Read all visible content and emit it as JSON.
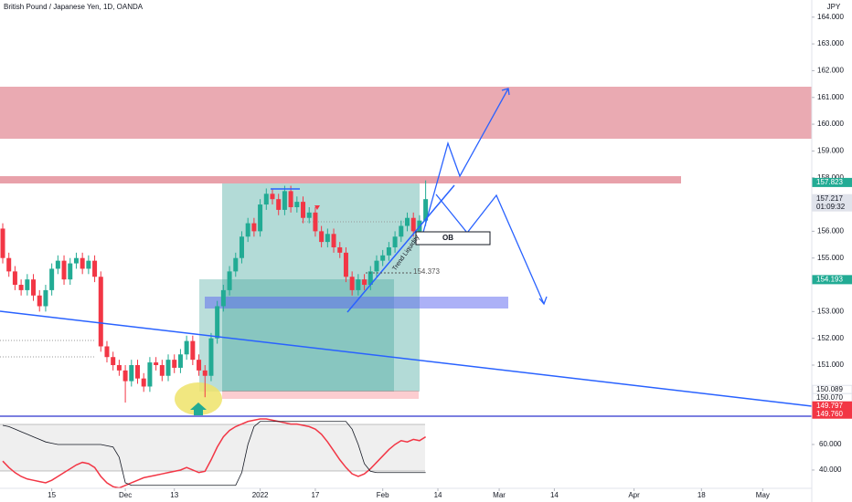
{
  "chart_data": [
    {
      "type": "candlestick",
      "title": "British Pound / Japanese Yen, 1D, OANDA",
      "axis_label": "JPY",
      "up_color": "#22ab94",
      "down_color": "#f23645",
      "xlim": [
        0,
        132
      ],
      "ylim": [
        149.125,
        164.64
      ],
      "xticks": [
        {
          "value": 8,
          "label": "15"
        },
        {
          "value": 20,
          "label": "Dec"
        },
        {
          "value": 28,
          "label": "13"
        },
        {
          "value": 42,
          "label": "2022"
        },
        {
          "value": 51,
          "label": "17"
        },
        {
          "value": 62,
          "label": "Feb"
        },
        {
          "value": 71,
          "label": "14"
        },
        {
          "value": 81,
          "label": "Mar"
        },
        {
          "value": 90,
          "label": "14"
        },
        {
          "value": 103,
          "label": "Apr"
        },
        {
          "value": 114,
          "label": "18"
        },
        {
          "value": 124,
          "label": "May"
        }
      ],
      "yticks": [
        {
          "value": 151,
          "label": "151.000"
        },
        {
          "value": 152,
          "label": "152.000"
        },
        {
          "value": 153,
          "label": "153.000"
        },
        {
          "value": 155,
          "label": "155.000"
        },
        {
          "value": 156,
          "label": "156.000"
        },
        {
          "value": 158,
          "label": "158.000"
        },
        {
          "value": 159,
          "label": "159.000"
        },
        {
          "value": 160,
          "label": "160.000"
        },
        {
          "value": 161,
          "label": "161.000"
        },
        {
          "value": 162,
          "label": "162.000"
        },
        {
          "value": 163,
          "label": "163.000"
        },
        {
          "value": 164,
          "label": "164.000"
        }
      ],
      "open": [
        156.1,
        155.0,
        154.5,
        154.0,
        153.8,
        154.2,
        153.6,
        153.2,
        153.8,
        154.6,
        154.9,
        154.2,
        154.8,
        155.0,
        154.6,
        154.9,
        154.3,
        151.7,
        151.3,
        151.0,
        150.8,
        150.4,
        151.0,
        150.5,
        150.2,
        151.1,
        151.0,
        150.6,
        151.2,
        150.9,
        151.4,
        151.9,
        151.2,
        150.8,
        150.6,
        152.0,
        153.2,
        153.8,
        154.5,
        155.0,
        155.8,
        156.3,
        156.0,
        157.0,
        157.4,
        157.2,
        156.8,
        157.5,
        156.9,
        157.1,
        156.5,
        156.7,
        156.0,
        155.6,
        155.9,
        155.4,
        155.2,
        154.3,
        153.8,
        154.2,
        154.0,
        154.5,
        154.9,
        155.1,
        155.4,
        155.8,
        156.2,
        156.5,
        156.0,
        156.4
      ],
      "high": [
        156.3,
        155.2,
        154.7,
        154.2,
        154.4,
        154.4,
        153.8,
        154.0,
        154.8,
        155.1,
        155.1,
        155.0,
        155.2,
        155.2,
        155.1,
        155.1,
        154.5,
        151.9,
        151.5,
        151.2,
        151.0,
        151.2,
        151.2,
        150.7,
        151.3,
        151.3,
        151.2,
        151.4,
        151.4,
        151.6,
        152.1,
        152.1,
        151.4,
        151.0,
        152.2,
        153.4,
        154.0,
        154.7,
        155.2,
        156.0,
        156.5,
        156.5,
        157.2,
        157.6,
        157.6,
        157.4,
        157.7,
        157.7,
        157.3,
        157.3,
        156.9,
        156.9,
        156.2,
        156.1,
        156.1,
        155.6,
        155.4,
        154.5,
        154.4,
        154.4,
        154.7,
        155.1,
        155.3,
        155.6,
        156.0,
        156.4,
        156.7,
        156.7,
        156.6,
        157.9
      ],
      "low": [
        154.8,
        154.3,
        153.8,
        153.6,
        153.6,
        153.4,
        153.0,
        153.0,
        153.6,
        154.4,
        154.0,
        154.0,
        154.6,
        154.4,
        154.4,
        154.1,
        151.5,
        151.1,
        150.8,
        150.6,
        149.6,
        150.2,
        150.3,
        150.0,
        150.0,
        150.8,
        150.4,
        150.4,
        150.7,
        150.7,
        151.2,
        151.0,
        150.6,
        149.8,
        150.4,
        151.8,
        153.0,
        153.6,
        154.3,
        154.8,
        155.6,
        155.8,
        155.8,
        156.8,
        157.0,
        156.6,
        156.6,
        156.7,
        156.7,
        156.3,
        156.3,
        155.8,
        155.4,
        155.4,
        155.2,
        155.0,
        154.1,
        153.6,
        153.6,
        153.8,
        153.8,
        154.3,
        154.7,
        154.9,
        155.2,
        155.6,
        156.0,
        155.8,
        155.8,
        156.2
      ],
      "close": [
        155.0,
        154.5,
        154.0,
        153.8,
        154.2,
        153.6,
        153.2,
        153.8,
        154.6,
        154.9,
        154.2,
        154.8,
        155.0,
        154.6,
        154.9,
        154.3,
        151.7,
        151.3,
        151.0,
        150.8,
        150.4,
        151.0,
        150.5,
        150.2,
        151.1,
        151.0,
        150.6,
        151.2,
        150.9,
        151.4,
        151.9,
        151.2,
        150.8,
        150.6,
        152.0,
        153.2,
        153.8,
        154.5,
        155.0,
        155.8,
        156.3,
        156.0,
        157.0,
        157.4,
        157.2,
        156.8,
        157.5,
        156.9,
        157.1,
        156.5,
        156.7,
        156.0,
        155.6,
        155.9,
        155.4,
        155.2,
        154.3,
        153.8,
        154.2,
        154.0,
        154.5,
        154.9,
        155.1,
        155.4,
        155.8,
        156.2,
        156.5,
        156.0,
        156.4,
        157.2
      ],
      "price_labels": [
        {
          "value": 157.823,
          "label": "157.823",
          "color": "#22ab94"
        },
        {
          "value": 157.217,
          "label": "157.217",
          "sublabel": "01:09:32",
          "color": "#e0e3eb"
        },
        {
          "value": 154.193,
          "label": "154.193",
          "color": "#22ab94"
        },
        {
          "value": 150.089,
          "label": "150.089",
          "color": "#ffffff"
        },
        {
          "value": 150.07,
          "label": "150.070",
          "color": "#ffffff"
        },
        {
          "value": 149.797,
          "label": "149.797",
          "color": "#f23645"
        },
        {
          "value": 149.76,
          "label": "149.760",
          "color": "#f23645"
        }
      ],
      "annotations": {
        "ob": "OB",
        "trend": "Trend Liquidity",
        "level": "154.373"
      }
    },
    {
      "type": "line",
      "xlim": [
        0,
        132
      ],
      "ylim": [
        25.7,
        80.7
      ],
      "yticks": [
        {
          "value": 40,
          "label": "40.000"
        },
        {
          "value": 60,
          "label": "60.000"
        }
      ],
      "series": [
        {
          "color": "#f23645",
          "values": [
            47,
            42,
            38,
            35,
            33,
            32,
            31,
            30,
            32,
            35,
            38,
            41,
            44,
            46,
            45,
            42,
            35,
            30,
            27,
            26,
            28,
            30,
            32,
            34,
            35,
            36,
            37,
            38,
            39,
            40,
            42,
            40,
            38,
            39,
            48,
            58,
            66,
            71,
            74,
            76,
            78,
            79,
            80,
            80,
            79,
            78,
            77,
            76,
            76,
            75,
            74,
            72,
            68,
            62,
            55,
            48,
            42,
            37,
            35,
            37,
            41,
            46,
            51,
            56,
            60,
            63,
            62,
            64,
            63,
            66
          ]
        },
        {
          "color": "#131722",
          "values": [
            75,
            74,
            72,
            70,
            68,
            66,
            64,
            62,
            61,
            60,
            60,
            60,
            60,
            60,
            60,
            60,
            60,
            59,
            58,
            50,
            30,
            28,
            28,
            28,
            28,
            28,
            28,
            28,
            28,
            28,
            28,
            28,
            28,
            28,
            28,
            28,
            28,
            28,
            28,
            38,
            60,
            74,
            78,
            78,
            78,
            78,
            78,
            78,
            78,
            78,
            78,
            78,
            78,
            78,
            78,
            78,
            78,
            72,
            60,
            45,
            39,
            38,
            38,
            38,
            38,
            38,
            38,
            38,
            38,
            38
          ]
        }
      ]
    }
  ]
}
